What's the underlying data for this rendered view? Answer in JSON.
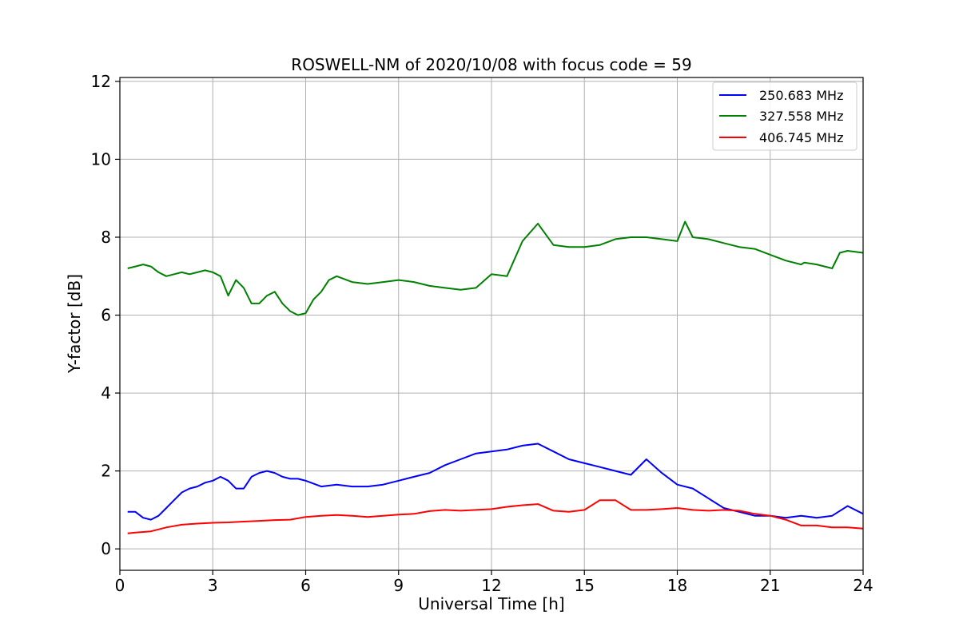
{
  "chart_data": {
    "type": "line",
    "title": "ROSWELL-NM of 2020/10/08 with focus code = 59",
    "xlabel": "Universal Time [h]",
    "ylabel": "Y-factor [dB]",
    "xlim": [
      0,
      24
    ],
    "ylim": [
      -0.55,
      12.1
    ],
    "xticks": [
      0,
      3,
      6,
      9,
      12,
      15,
      18,
      21,
      24
    ],
    "yticks": [
      0,
      2,
      4,
      6,
      8,
      10,
      12
    ],
    "grid": true,
    "legend_position": "top-right",
    "series": [
      {
        "name": "250.683 MHz",
        "color": "#0000ff",
        "x": [
          0.25,
          0.5,
          0.75,
          1.0,
          1.25,
          1.5,
          1.75,
          2.0,
          2.25,
          2.5,
          2.75,
          3.0,
          3.25,
          3.5,
          3.75,
          4.0,
          4.25,
          4.5,
          4.75,
          5.0,
          5.25,
          5.5,
          5.75,
          6.0,
          6.5,
          7.0,
          7.5,
          8.0,
          8.5,
          9.0,
          9.5,
          10.0,
          10.5,
          11.0,
          11.5,
          12.0,
          12.5,
          13.0,
          13.5,
          14.0,
          14.5,
          15.0,
          15.5,
          16.0,
          16.5,
          17.0,
          17.5,
          18.0,
          18.5,
          19.0,
          19.5,
          20.0,
          20.5,
          21.0,
          21.5,
          22.0,
          22.5,
          23.0,
          23.5,
          24.0
        ],
        "values": [
          0.95,
          0.95,
          0.8,
          0.75,
          0.85,
          1.05,
          1.25,
          1.45,
          1.55,
          1.6,
          1.7,
          1.75,
          1.85,
          1.75,
          1.55,
          1.55,
          1.85,
          1.95,
          2.0,
          1.95,
          1.85,
          1.8,
          1.8,
          1.75,
          1.6,
          1.65,
          1.6,
          1.6,
          1.65,
          1.75,
          1.85,
          1.95,
          2.15,
          2.3,
          2.45,
          2.5,
          2.55,
          2.65,
          2.7,
          2.5,
          2.3,
          2.2,
          2.1,
          2.0,
          1.9,
          2.3,
          1.95,
          1.65,
          1.55,
          1.3,
          1.05,
          0.95,
          0.85,
          0.85,
          0.8,
          0.85,
          0.8,
          0.85,
          1.1,
          0.9
        ]
      },
      {
        "name": "327.558 MHz",
        "color": "#008000",
        "x": [
          0.25,
          0.5,
          0.75,
          1.0,
          1.25,
          1.5,
          1.75,
          2.0,
          2.25,
          2.5,
          2.75,
          3.0,
          3.25,
          3.5,
          3.75,
          4.0,
          4.25,
          4.5,
          4.75,
          5.0,
          5.25,
          5.5,
          5.75,
          6.0,
          6.25,
          6.5,
          6.75,
          7.0,
          7.5,
          8.0,
          8.5,
          9.0,
          9.5,
          10.0,
          10.5,
          11.0,
          11.5,
          12.0,
          12.5,
          13.0,
          13.5,
          14.0,
          14.5,
          15.0,
          15.5,
          16.0,
          16.5,
          16.9,
          17.0,
          17.5,
          18.0,
          18.25,
          18.5,
          19.0,
          19.5,
          20.0,
          20.5,
          21.0,
          21.5,
          22.0,
          22.1,
          22.5,
          23.0,
          23.25,
          23.5,
          24.0
        ],
        "values": [
          7.2,
          7.25,
          7.3,
          7.25,
          7.1,
          7.0,
          7.05,
          7.1,
          7.05,
          7.1,
          7.15,
          7.1,
          7.0,
          6.5,
          6.9,
          6.7,
          6.3,
          6.3,
          6.5,
          6.6,
          6.3,
          6.1,
          6.0,
          6.05,
          6.4,
          6.6,
          6.9,
          7.0,
          6.85,
          6.8,
          6.85,
          6.9,
          6.85,
          6.75,
          6.7,
          6.65,
          6.7,
          7.05,
          7.0,
          7.9,
          8.35,
          7.8,
          7.75,
          7.75,
          7.8,
          7.95,
          8.0,
          8.0,
          8.0,
          7.95,
          7.9,
          8.4,
          8.0,
          7.95,
          7.85,
          7.75,
          7.7,
          7.55,
          7.4,
          7.3,
          7.35,
          7.3,
          7.2,
          7.6,
          7.65,
          7.6
        ]
      },
      {
        "name": "406.745 MHz",
        "color": "#ff0000",
        "x": [
          0.25,
          0.5,
          1.0,
          1.5,
          2.0,
          2.5,
          3.0,
          3.5,
          4.0,
          4.5,
          5.0,
          5.5,
          6.0,
          6.5,
          7.0,
          7.5,
          8.0,
          8.5,
          9.0,
          9.5,
          10.0,
          10.5,
          11.0,
          11.5,
          12.0,
          12.5,
          13.0,
          13.5,
          14.0,
          14.5,
          15.0,
          15.5,
          16.0,
          16.5,
          17.0,
          17.5,
          18.0,
          18.5,
          19.0,
          19.5,
          20.0,
          20.5,
          21.0,
          21.5,
          22.0,
          22.5,
          23.0,
          23.5,
          24.0
        ],
        "values": [
          0.4,
          0.42,
          0.45,
          0.55,
          0.62,
          0.65,
          0.67,
          0.68,
          0.7,
          0.72,
          0.74,
          0.75,
          0.82,
          0.85,
          0.87,
          0.85,
          0.82,
          0.85,
          0.88,
          0.9,
          0.97,
          1.0,
          0.98,
          1.0,
          1.02,
          1.08,
          1.12,
          1.15,
          0.98,
          0.95,
          1.0,
          1.25,
          1.25,
          1.0,
          1.0,
          1.02,
          1.05,
          1.0,
          0.98,
          1.0,
          0.98,
          0.9,
          0.85,
          0.75,
          0.6,
          0.6,
          0.55,
          0.55,
          0.52
        ]
      }
    ]
  }
}
